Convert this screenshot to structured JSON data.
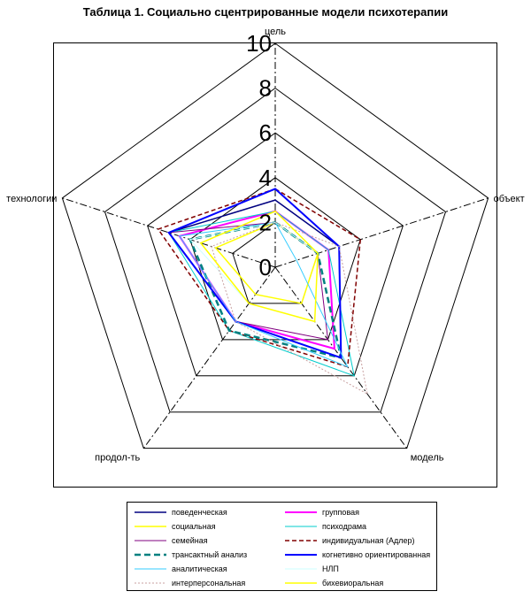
{
  "chart_data": {
    "type": "radar",
    "title": "Таблица 1. Социально сцентрированные модели психотерапии",
    "axes": [
      "цель",
      "объект",
      "модель",
      "продол-ть",
      "технологии"
    ],
    "rlim": [
      0,
      10
    ],
    "ticks": [
      "0",
      "2",
      "4",
      "6",
      "8",
      "10"
    ],
    "series": [
      {
        "name": "поведенческая",
        "color": "#000080",
        "dash": "",
        "width": 1.5,
        "values": [
          3,
          3,
          5,
          3,
          5
        ]
      },
      {
        "name": "групповая",
        "color": "#ff00ff",
        "dash": "",
        "width": 2,
        "values": [
          2.5,
          2.5,
          4.5,
          3,
          4.5
        ]
      },
      {
        "name": "социальная",
        "color": "#ffff00",
        "dash": "",
        "width": 1.5,
        "values": [
          2,
          2,
          2,
          1.5,
          2.8
        ]
      },
      {
        "name": "психодрама",
        "color": "#00cccc",
        "dash": "",
        "width": 1,
        "values": [
          2.5,
          2.5,
          6,
          3.5,
          5
        ]
      },
      {
        "name": "семейная",
        "color": "#800080",
        "dash": "",
        "width": 1,
        "values": [
          2,
          2,
          4,
          3,
          5
        ]
      },
      {
        "name": "индивидуальная  (Адлер)",
        "color": "#800000",
        "dash": "5,3",
        "width": 1.5,
        "values": [
          3.5,
          4,
          5.5,
          3.5,
          5.5
        ]
      },
      {
        "name": "трансактный  анализ",
        "color": "#008080",
        "dash": "7,4",
        "width": 2.5,
        "values": [
          2,
          2,
          5,
          3.5,
          4
        ]
      },
      {
        "name": "когнетивно  ориентированная",
        "color": "#0000ff",
        "dash": "",
        "width": 2,
        "values": [
          3.5,
          3,
          5,
          3,
          5
        ]
      },
      {
        "name": "аналитическая",
        "color": "#33ccff",
        "dash": "",
        "width": 1,
        "values": [
          2,
          1,
          5.5,
          3,
          4.5
        ]
      },
      {
        "name": "НЛП",
        "color": "#ccffff",
        "dash": "",
        "width": 1,
        "values": [
          2,
          2,
          3,
          2,
          4
        ]
      },
      {
        "name": "интерперсональная",
        "color": "#c8a0a0",
        "dash": "2,2",
        "width": 1,
        "values": [
          2,
          3,
          7,
          3,
          3
        ]
      },
      {
        "name": "бихевиоральная",
        "color": "#ffff00",
        "dash": "",
        "width": 1.5,
        "values": [
          2.5,
          2,
          3,
          2,
          3.5
        ]
      }
    ],
    "legend_position": "bottom",
    "grid": true
  }
}
